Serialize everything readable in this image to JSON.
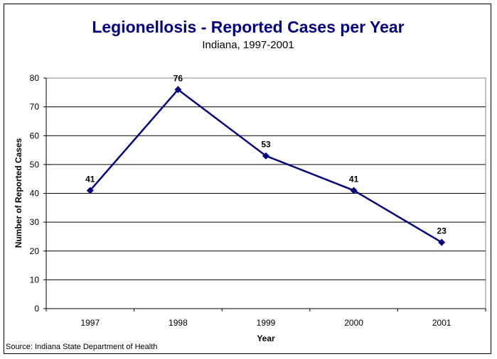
{
  "chart_data": {
    "type": "line",
    "title": "Legionellosis - Reported Cases per Year",
    "subtitle": "Indiana, 1997-2001",
    "xlabel": "Year",
    "ylabel": "Number of Reported Cases",
    "categories": [
      "1997",
      "1998",
      "1999",
      "2000",
      "2001"
    ],
    "series": [
      {
        "name": "Reported Cases",
        "values": [
          41,
          76,
          53,
          41,
          23
        ],
        "color": "#000080",
        "marker": "diamond"
      }
    ],
    "data_labels": [
      "41",
      "76",
      "53",
      "41",
      "23"
    ],
    "ylim": [
      0,
      80
    ],
    "yticks": [
      0,
      10,
      20,
      30,
      40,
      50,
      60,
      70,
      80
    ],
    "ytick_labels": [
      "0",
      "10",
      "20",
      "30",
      "40",
      "50",
      "60",
      "70",
      "80"
    ],
    "grid": true,
    "legend": "none",
    "source": "Source: Indiana State Department of Health"
  }
}
